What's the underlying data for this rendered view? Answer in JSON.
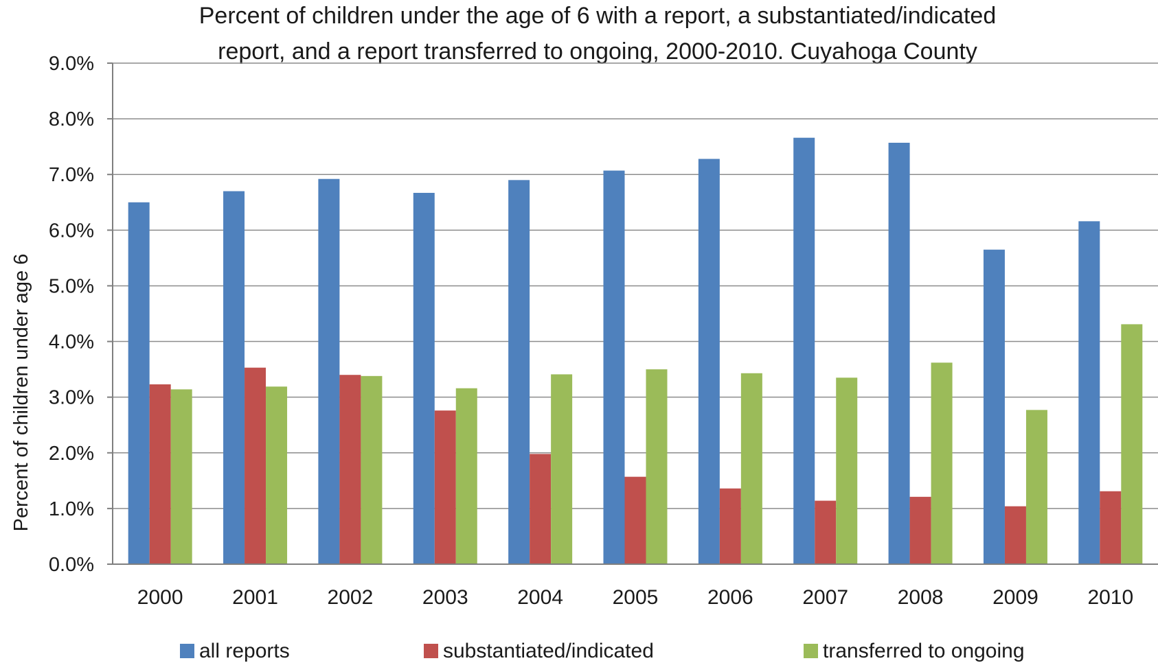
{
  "chart_data": {
    "type": "bar",
    "title_lines": [
      "Percent of children under the age of 6 with a report, a substantiated/indicated",
      "report, and a report transferred  to ongoing, 2000-2010. Cuyahoga County"
    ],
    "xlabel": "",
    "ylabel": "Percent of children under age 6",
    "ylim": [
      0,
      9
    ],
    "y_ticks": [
      "0.0%",
      "1.0%",
      "2.0%",
      "3.0%",
      "4.0%",
      "5.0%",
      "6.0%",
      "7.0%",
      "8.0%",
      "9.0%"
    ],
    "grid": true,
    "legend_position": "bottom",
    "categories": [
      "2000",
      "2001",
      "2002",
      "2003",
      "2004",
      "2005",
      "2006",
      "2007",
      "2008",
      "2009",
      "2010"
    ],
    "series": [
      {
        "name": "all reports",
        "color": "#4f81bd",
        "values": [
          6.5,
          6.7,
          6.92,
          6.67,
          6.9,
          7.07,
          7.28,
          7.66,
          7.57,
          5.65,
          6.16
        ]
      },
      {
        "name": "substantiated/indicated",
        "color": "#c0504d",
        "values": [
          3.23,
          3.53,
          3.4,
          2.76,
          1.98,
          1.57,
          1.36,
          1.14,
          1.21,
          1.04,
          1.31
        ]
      },
      {
        "name": "transferred to ongoing",
        "color": "#9bbb59",
        "values": [
          3.14,
          3.19,
          3.38,
          3.16,
          3.41,
          3.5,
          3.43,
          3.35,
          3.62,
          2.77,
          4.31
        ]
      }
    ]
  }
}
